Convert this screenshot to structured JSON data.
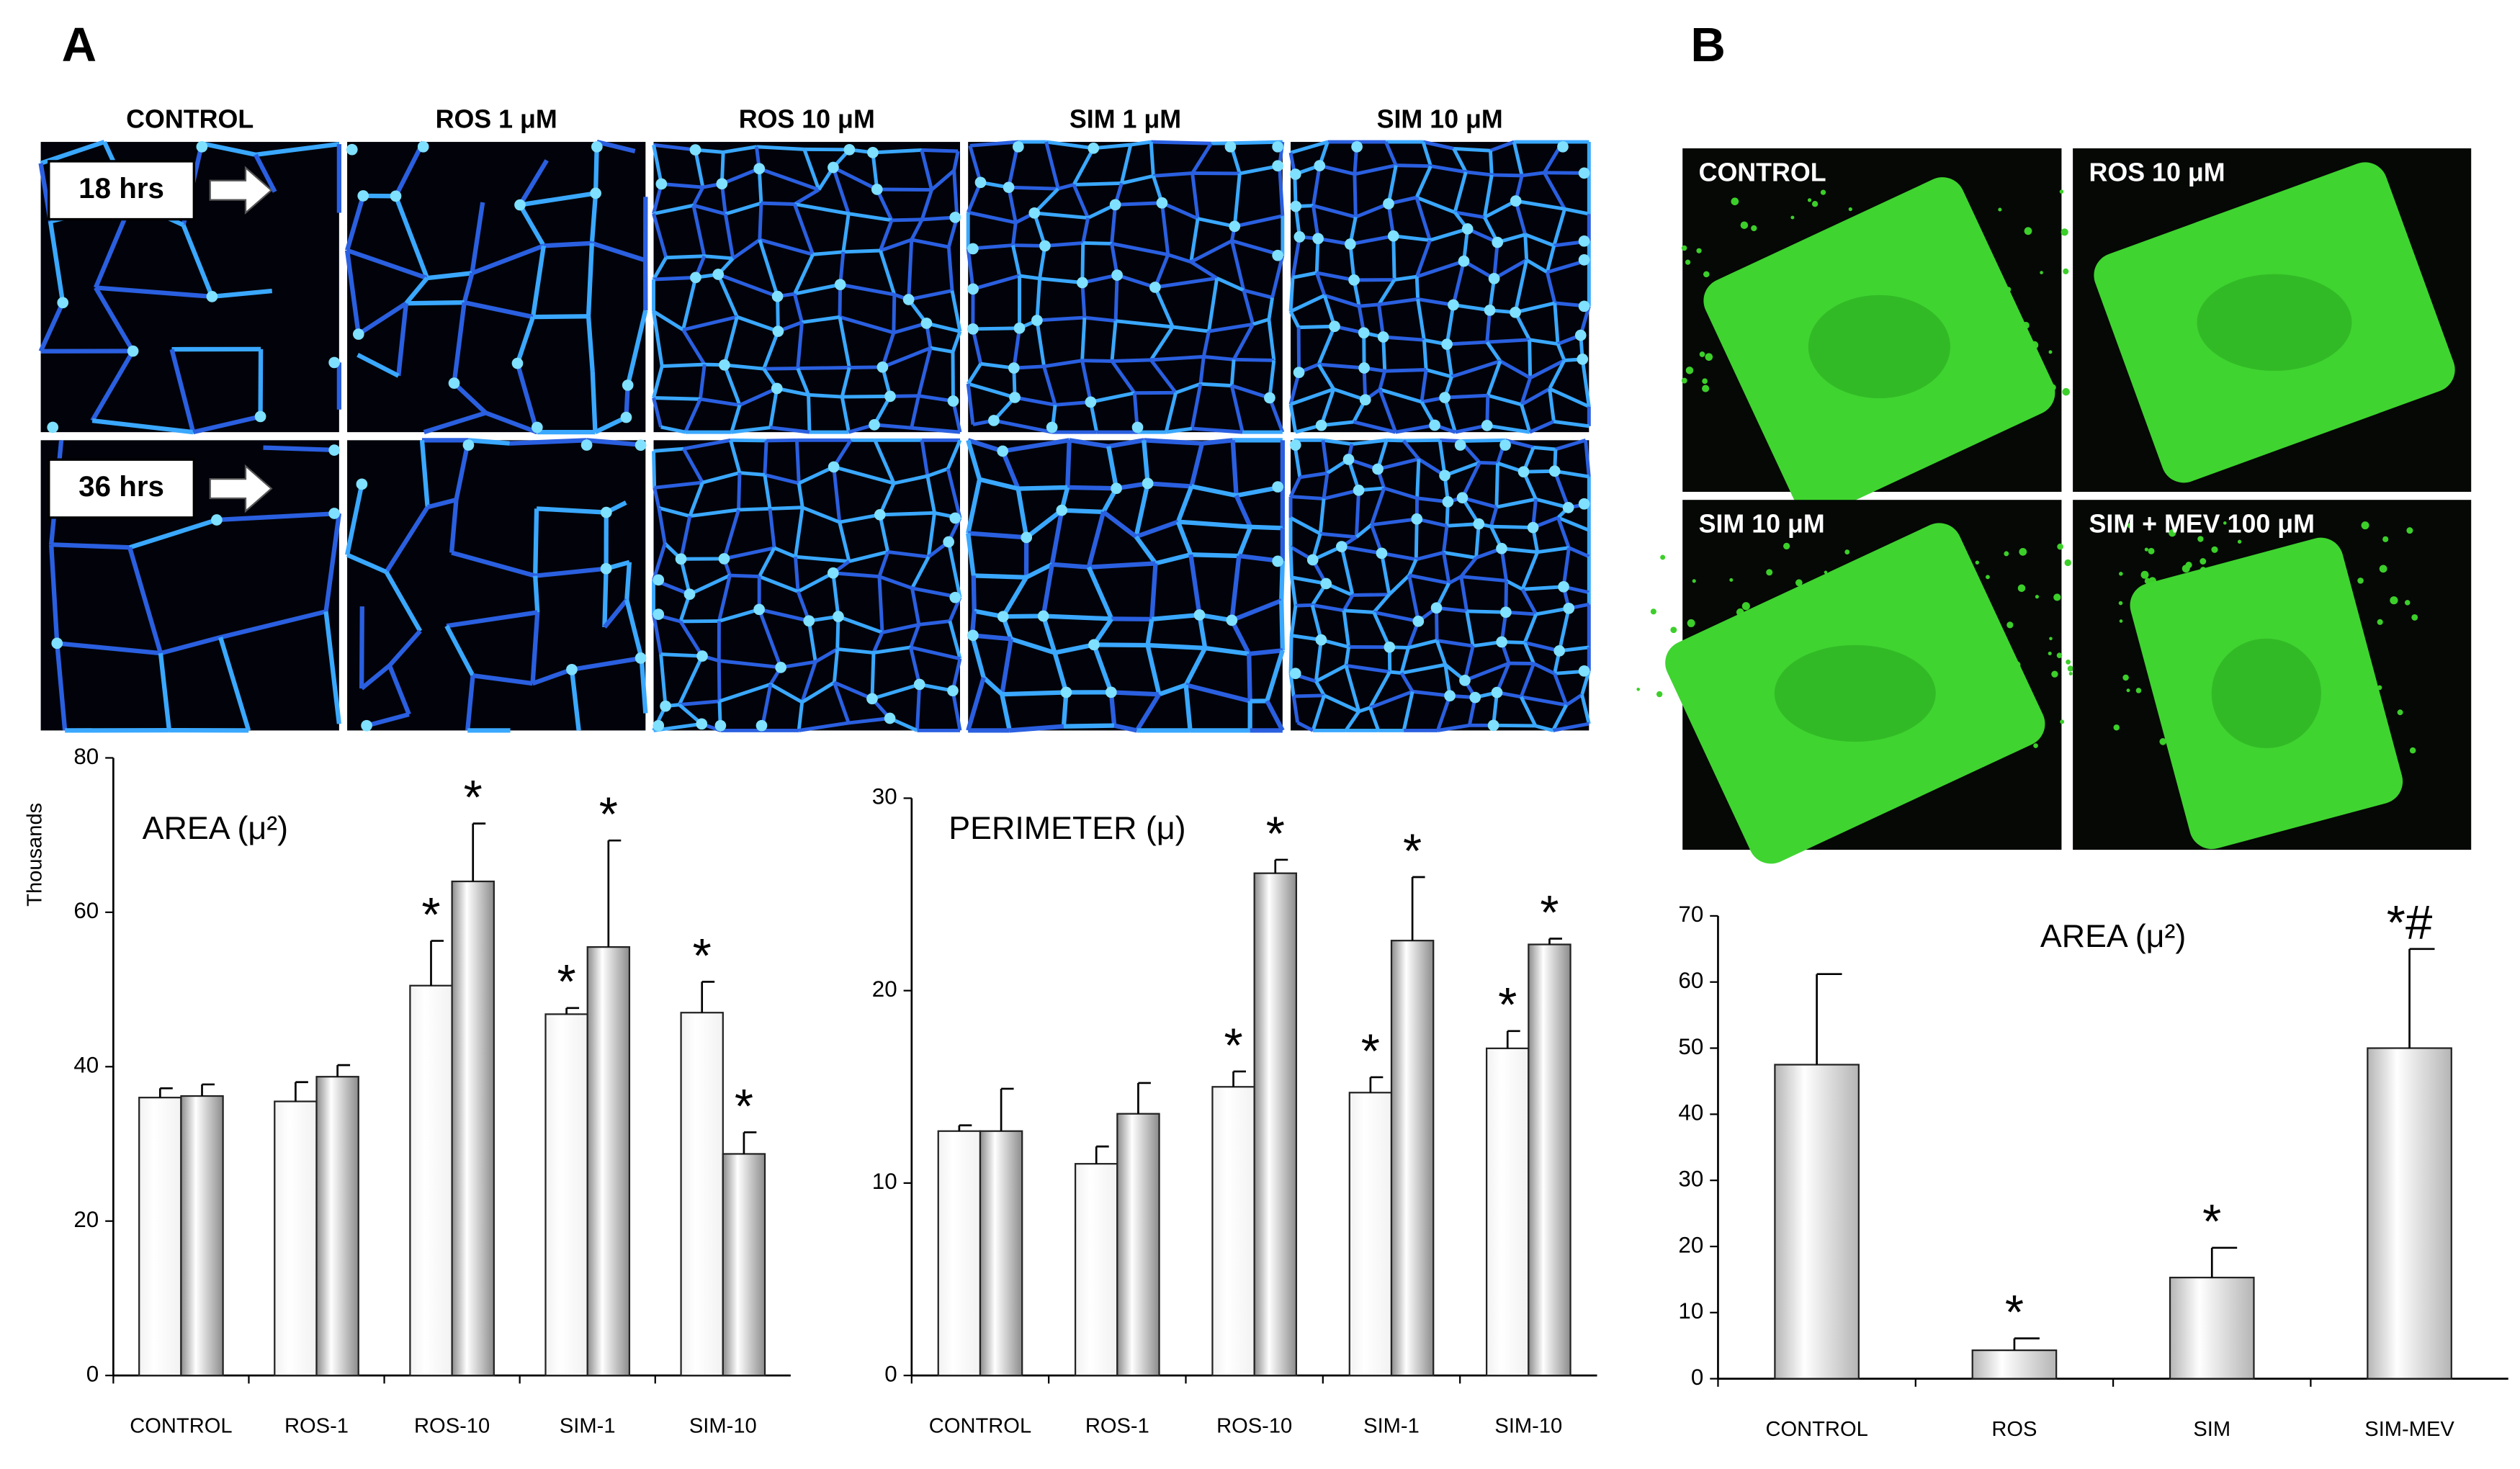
{
  "panel_a": {
    "label": "A",
    "columns": [
      "CONTROL",
      "ROS 1 μM",
      "ROS 10 μM",
      "SIM 1 μM",
      "SIM 10 μM"
    ],
    "rows": [
      "18 hrs",
      "36 hrs"
    ]
  },
  "panel_b": {
    "label": "B",
    "images": [
      "CONTROL",
      "ROS 10 μM",
      "SIM 10 μM",
      "SIM  + MEV 100 μM"
    ]
  },
  "chart_data": [
    {
      "type": "bar",
      "title": "AREA (μ²)",
      "ylabel": "Thousands",
      "categories": [
        "CONTROL",
        "ROS-1",
        "ROS-10",
        "SIM-1",
        "SIM-10"
      ],
      "series": [
        {
          "color": "#f2f2f2",
          "values": [
            36,
            35.5,
            50.5,
            46.8,
            47
          ],
          "errors": [
            1.2,
            2.5,
            5.8,
            0.8,
            4
          ],
          "markers": [
            null,
            null,
            "*",
            "*",
            "*"
          ]
        },
        {
          "color": "#8c8c8c",
          "values": [
            36.2,
            38.7,
            64,
            55.5,
            28.7
          ],
          "errors": [
            1.5,
            1.5,
            7.5,
            13.8,
            2.8
          ],
          "markers": [
            null,
            null,
            "*",
            "*",
            "*"
          ]
        }
      ],
      "ylim": [
        0,
        80
      ],
      "yticks": [
        0,
        20,
        40,
        60,
        80
      ]
    },
    {
      "type": "bar",
      "title": "PERIMETER (μ)",
      "categories": [
        "CONTROL",
        "ROS-1",
        "ROS-10",
        "SIM-1",
        "SIM-10"
      ],
      "series": [
        {
          "color": "#f2f2f2",
          "values": [
            12.7,
            11,
            15,
            14.7,
            17
          ],
          "errors": [
            0.3,
            0.9,
            0.8,
            0.8,
            0.9
          ],
          "markers": [
            null,
            null,
            "*",
            "*",
            "*"
          ]
        },
        {
          "color": "#8c8c8c",
          "values": [
            12.7,
            13.6,
            26.1,
            22.6,
            22.4
          ],
          "errors": [
            2.2,
            1.6,
            0.7,
            3.3,
            0.3
          ],
          "markers": [
            null,
            null,
            "*",
            "*",
            "*"
          ]
        }
      ],
      "ylim": [
        0,
        30
      ],
      "yticks": [
        0,
        10,
        20,
        30
      ]
    },
    {
      "type": "bar",
      "title": "AREA (μ²)",
      "categories": [
        "CONTROL",
        "ROS",
        "SIM",
        "SIM-MEV"
      ],
      "series": [
        {
          "color": "#b5b5b5",
          "values": [
            47.5,
            4.3,
            15.3,
            50
          ],
          "errors": [
            13.7,
            1.8,
            4.5,
            15
          ],
          "markers": [
            null,
            "*",
            "*",
            "*#"
          ]
        }
      ],
      "ylim": [
        0,
        70
      ],
      "yticks": [
        0,
        10,
        20,
        30,
        40,
        50,
        60,
        70
      ]
    }
  ]
}
